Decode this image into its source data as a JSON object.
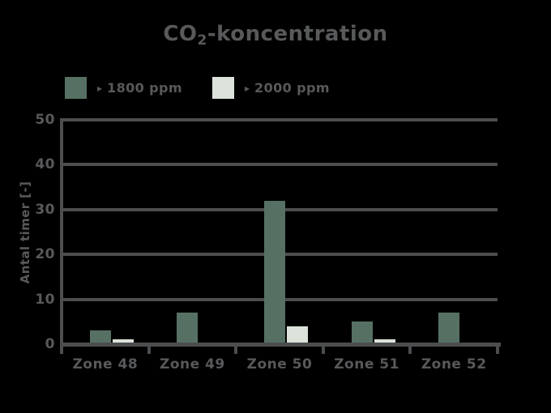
{
  "title": {
    "pre": "CO",
    "sub": "2",
    "post": "-koncentration"
  },
  "legend": {
    "items": [
      {
        "symbol": "▸",
        "label": "1800 ppm",
        "color": "#567164"
      },
      {
        "symbol": "▸",
        "label": "2000 ppm",
        "color": "#DBE3DA"
      }
    ]
  },
  "chart_data": {
    "type": "bar",
    "title": "CO2-koncentration",
    "categories": [
      "Zone 48",
      "Zone 49",
      "Zone 50",
      "Zone 51",
      "Zone 52"
    ],
    "series": [
      {
        "name": "> 1800 ppm",
        "color": "#567164",
        "values": [
          3,
          7,
          32,
          5,
          7
        ]
      },
      {
        "name": "> 2000 ppm",
        "color": "#DBE3DA",
        "values": [
          1,
          0,
          4,
          1,
          0
        ]
      }
    ],
    "xlabel": "",
    "ylabel": "Antal timer [-]",
    "ylim": [
      0,
      50
    ],
    "yticks": [
      0,
      10,
      20,
      30,
      40,
      50
    ],
    "grid": true,
    "legend_position": "top-left",
    "background_color": "#000000",
    "text_color": "#58595B",
    "grid_color": "#4C4D4F"
  }
}
